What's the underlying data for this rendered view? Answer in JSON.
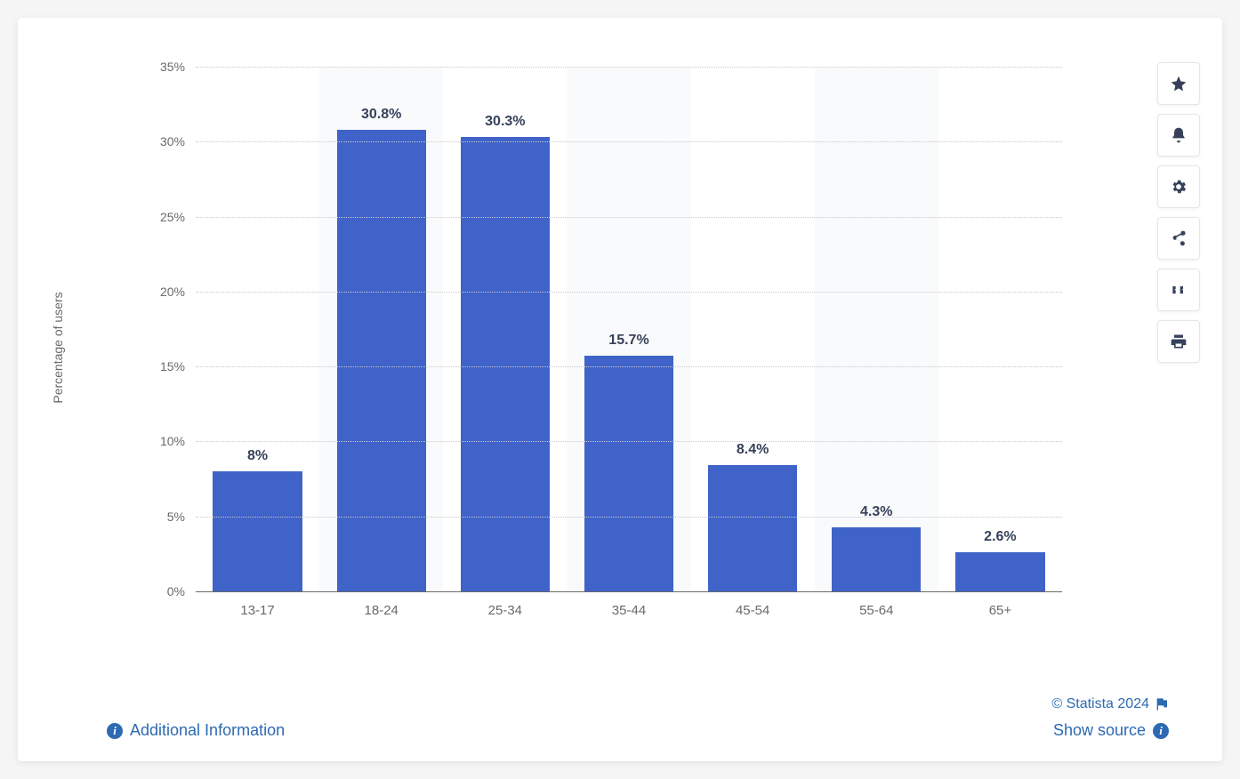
{
  "chart": {
    "type": "bar",
    "ylabel": "Percentage of users",
    "ylabel_fontsize": 14,
    "ylim": [
      0,
      35
    ],
    "ytick_step": 5,
    "yticks": [
      {
        "v": 0,
        "label": "0%"
      },
      {
        "v": 5,
        "label": "5%"
      },
      {
        "v": 10,
        "label": "10%"
      },
      {
        "v": 15,
        "label": "15%"
      },
      {
        "v": 20,
        "label": "20%"
      },
      {
        "v": 25,
        "label": "25%"
      },
      {
        "v": 30,
        "label": "30%"
      },
      {
        "v": 35,
        "label": "35%"
      }
    ],
    "categories": [
      "13-17",
      "18-24",
      "25-34",
      "35-44",
      "45-54",
      "55-64",
      "65+"
    ],
    "values": [
      8,
      30.8,
      30.3,
      15.7,
      8.4,
      4.3,
      2.6
    ],
    "value_labels": [
      "8%",
      "30.8%",
      "30.3%",
      "15.7%",
      "8.4%",
      "4.3%",
      "2.6%"
    ],
    "bar_color": "#3f63c8",
    "bar_width": 0.72,
    "value_label_fontsize": 16,
    "value_label_color": "#37415b",
    "axis_label_color": "#6a6a6a",
    "axis_label_fontsize": 14,
    "grid_color": "#c8c8c8",
    "grid_style": "dotted",
    "axis_line_color": "#6a6a6a",
    "alt_column_bg": "#f5f6f8",
    "background_color": "#ffffff"
  },
  "toolbar": {
    "items": [
      {
        "name": "star-icon"
      },
      {
        "name": "bell-icon"
      },
      {
        "name": "gear-icon"
      },
      {
        "name": "share-icon"
      },
      {
        "name": "quote-icon"
      },
      {
        "name": "print-icon"
      }
    ],
    "icon_color": "#37415b",
    "button_bg": "#ffffff",
    "button_border": "#e6e6e6"
  },
  "footer": {
    "additional_info": "Additional Information",
    "copyright": "© Statista 2024",
    "show_source": "Show source",
    "link_color": "#2d6ab1"
  }
}
